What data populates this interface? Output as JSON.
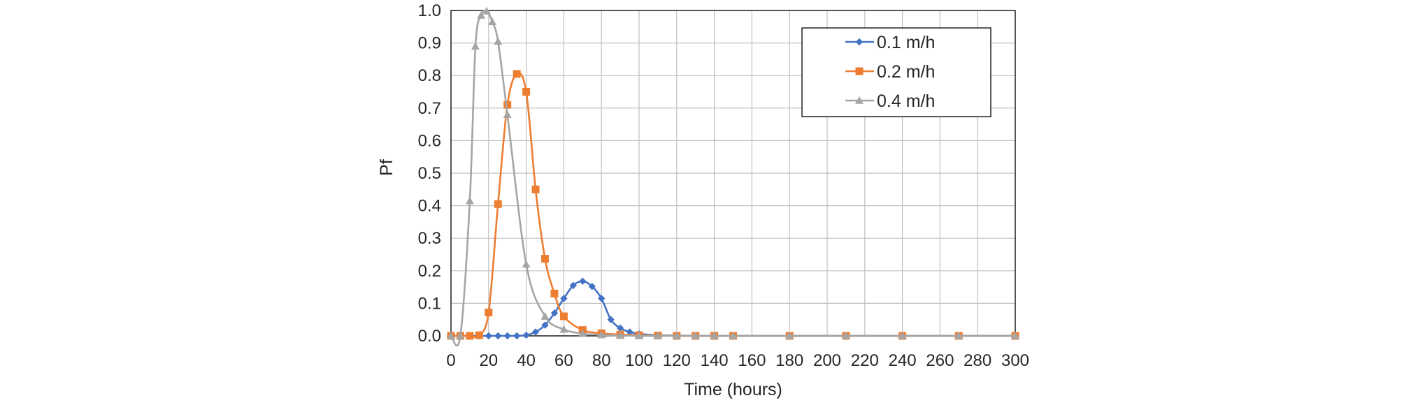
{
  "chart_data": {
    "type": "line",
    "xlabel": "Time (hours)",
    "ylabel": "Pf",
    "xlim": [
      0,
      300
    ],
    "ylim": [
      0,
      1.0
    ],
    "x_ticks": [
      0,
      20,
      40,
      60,
      80,
      100,
      120,
      140,
      160,
      180,
      200,
      220,
      240,
      260,
      280,
      300
    ],
    "y_ticks": [
      "0.0",
      "0.1",
      "0.2",
      "0.3",
      "0.4",
      "0.5",
      "0.6",
      "0.7",
      "0.8",
      "0.9",
      "1.0"
    ],
    "grid": true,
    "legend_position": "top-right",
    "series": [
      {
        "name": "0.1 m/h",
        "color": "#4472C4",
        "marker": "diamond",
        "points": [
          [
            0,
            0
          ],
          [
            5,
            0
          ],
          [
            10,
            0
          ],
          [
            15,
            0
          ],
          [
            20,
            0
          ],
          [
            25,
            0
          ],
          [
            30,
            0
          ],
          [
            35,
            0
          ],
          [
            40,
            0.002
          ],
          [
            45,
            0.012
          ],
          [
            50,
            0.033
          ],
          [
            55,
            0.07
          ],
          [
            60,
            0.115
          ],
          [
            65,
            0.155
          ],
          [
            70,
            0.168
          ],
          [
            75,
            0.152
          ],
          [
            80,
            0.115
          ],
          [
            85,
            0.05
          ],
          [
            90,
            0.024
          ],
          [
            95,
            0.012
          ],
          [
            100,
            0.006
          ],
          [
            110,
            0.002
          ],
          [
            120,
            0.001
          ],
          [
            130,
            0
          ],
          [
            140,
            0
          ],
          [
            150,
            0
          ],
          [
            180,
            0
          ],
          [
            210,
            0
          ],
          [
            240,
            0
          ],
          [
            270,
            0
          ],
          [
            300,
            0
          ]
        ]
      },
      {
        "name": "0.2 m/h",
        "color": "#ED7D31",
        "marker": "square",
        "points": [
          [
            0,
            0
          ],
          [
            5,
            0
          ],
          [
            10,
            0
          ],
          [
            15,
            0.002
          ],
          [
            20,
            0.072
          ],
          [
            25,
            0.405
          ],
          [
            30,
            0.71
          ],
          [
            35,
            0.805
          ],
          [
            40,
            0.75
          ],
          [
            45,
            0.45
          ],
          [
            50,
            0.237
          ],
          [
            55,
            0.13
          ],
          [
            60,
            0.06
          ],
          [
            70,
            0.018
          ],
          [
            80,
            0.008
          ],
          [
            90,
            0.004
          ],
          [
            100,
            0.002
          ],
          [
            110,
            0.001
          ],
          [
            120,
            0
          ],
          [
            130,
            0
          ],
          [
            140,
            0
          ],
          [
            150,
            0
          ],
          [
            180,
            0
          ],
          [
            210,
            0
          ],
          [
            240,
            0
          ],
          [
            270,
            0
          ],
          [
            300,
            0
          ]
        ]
      },
      {
        "name": "0.4 m/h",
        "color": "#A5A5A5",
        "marker": "triangle",
        "points": [
          [
            0,
            0
          ],
          [
            5,
            0.001
          ],
          [
            10,
            0.415
          ],
          [
            13,
            0.89
          ],
          [
            16,
            0.985
          ],
          [
            19,
            0.998
          ],
          [
            22,
            0.965
          ],
          [
            25,
            0.905
          ],
          [
            30,
            0.68
          ],
          [
            40,
            0.22
          ],
          [
            50,
            0.06
          ],
          [
            60,
            0.02
          ],
          [
            70,
            0.007
          ],
          [
            80,
            0.003
          ],
          [
            90,
            0.001
          ],
          [
            100,
            0
          ],
          [
            110,
            0
          ],
          [
            120,
            0
          ],
          [
            130,
            0
          ],
          [
            140,
            0
          ],
          [
            150,
            0
          ],
          [
            180,
            0
          ],
          [
            210,
            0
          ],
          [
            240,
            0
          ],
          [
            270,
            0
          ],
          [
            300,
            0
          ]
        ]
      }
    ]
  }
}
